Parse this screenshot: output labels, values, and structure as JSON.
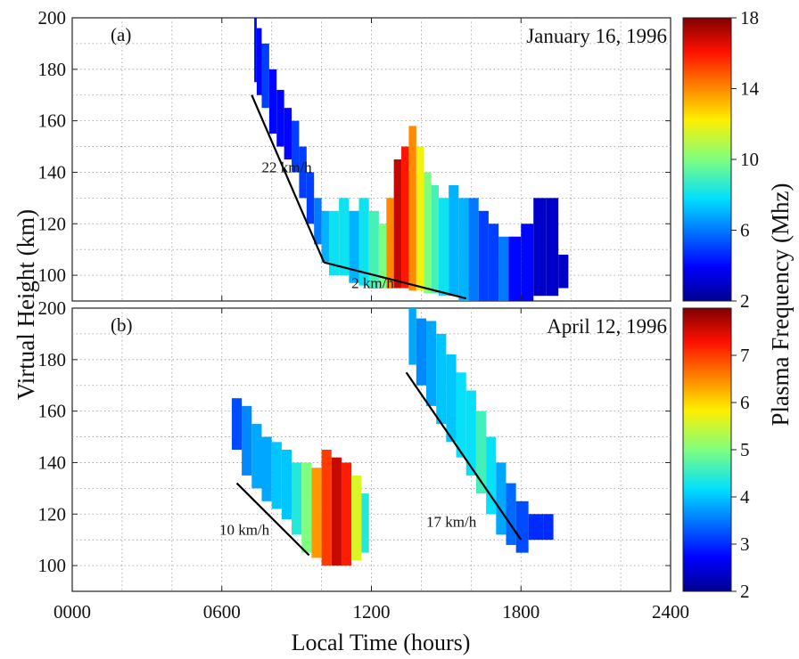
{
  "chart_data": [
    {
      "type": "heatmap",
      "panel_label": "(a)",
      "title": "January 16, 1996",
      "xlim": [
        0,
        2400
      ],
      "ylim": [
        90,
        200
      ],
      "x_ticks": [],
      "y_ticks": [
        "100",
        "120",
        "140",
        "160",
        "180",
        "200"
      ],
      "colorbar": {
        "min": 2,
        "max": 18,
        "ticks": [
          "2",
          "6",
          "10",
          "14",
          "18"
        ]
      },
      "cells": [
        {
          "t0": 730,
          "t1": 740,
          "h0": 175,
          "h1": 200,
          "f": 4
        },
        {
          "t0": 740,
          "t1": 760,
          "h0": 170,
          "h1": 196,
          "f": 4
        },
        {
          "t0": 760,
          "t1": 790,
          "h0": 165,
          "h1": 190,
          "f": 5
        },
        {
          "t0": 790,
          "t1": 820,
          "h0": 155,
          "h1": 180,
          "f": 4
        },
        {
          "t0": 820,
          "t1": 850,
          "h0": 150,
          "h1": 172,
          "f": 4
        },
        {
          "t0": 850,
          "t1": 880,
          "h0": 145,
          "h1": 165,
          "f": 4
        },
        {
          "t0": 880,
          "t1": 910,
          "h0": 140,
          "h1": 160,
          "f": 5
        },
        {
          "t0": 910,
          "t1": 940,
          "h0": 130,
          "h1": 150,
          "f": 5
        },
        {
          "t0": 940,
          "t1": 970,
          "h0": 120,
          "h1": 140,
          "f": 5
        },
        {
          "t0": 970,
          "t1": 1000,
          "h0": 112,
          "h1": 130,
          "f": 6
        },
        {
          "t0": 1000,
          "t1": 1030,
          "h0": 105,
          "h1": 125,
          "f": 7
        },
        {
          "t0": 1030,
          "t1": 1070,
          "h0": 100,
          "h1": 125,
          "f": 8
        },
        {
          "t0": 1070,
          "t1": 1110,
          "h0": 100,
          "h1": 130,
          "f": 8
        },
        {
          "t0": 1110,
          "t1": 1150,
          "h0": 97,
          "h1": 125,
          "f": 7
        },
        {
          "t0": 1150,
          "t1": 1190,
          "h0": 96,
          "h1": 130,
          "f": 8
        },
        {
          "t0": 1190,
          "t1": 1230,
          "h0": 95,
          "h1": 125,
          "f": 9
        },
        {
          "t0": 1230,
          "t1": 1260,
          "h0": 95,
          "h1": 120,
          "f": 10
        },
        {
          "t0": 1260,
          "t1": 1290,
          "h0": 95,
          "h1": 130,
          "f": 14
        },
        {
          "t0": 1290,
          "t1": 1320,
          "h0": 95,
          "h1": 145,
          "f": 17
        },
        {
          "t0": 1320,
          "t1": 1350,
          "h0": 95,
          "h1": 150,
          "f": 16
        },
        {
          "t0": 1350,
          "t1": 1380,
          "h0": 94,
          "h1": 158,
          "f": 14
        },
        {
          "t0": 1380,
          "t1": 1410,
          "h0": 94,
          "h1": 150,
          "f": 12
        },
        {
          "t0": 1410,
          "t1": 1440,
          "h0": 93,
          "h1": 140,
          "f": 10
        },
        {
          "t0": 1440,
          "t1": 1470,
          "h0": 93,
          "h1": 135,
          "f": 9
        },
        {
          "t0": 1470,
          "t1": 1510,
          "h0": 92,
          "h1": 130,
          "f": 8
        },
        {
          "t0": 1510,
          "t1": 1550,
          "h0": 92,
          "h1": 135,
          "f": 7
        },
        {
          "t0": 1550,
          "t1": 1590,
          "h0": 90,
          "h1": 130,
          "f": 7
        },
        {
          "t0": 1590,
          "t1": 1630,
          "h0": 90,
          "h1": 130,
          "f": 6
        },
        {
          "t0": 1630,
          "t1": 1670,
          "h0": 90,
          "h1": 125,
          "f": 5
        },
        {
          "t0": 1670,
          "t1": 1710,
          "h0": 90,
          "h1": 120,
          "f": 5
        },
        {
          "t0": 1710,
          "t1": 1750,
          "h0": 90,
          "h1": 115,
          "f": 6
        },
        {
          "t0": 1750,
          "t1": 1800,
          "h0": 90,
          "h1": 115,
          "f": 4
        },
        {
          "t0": 1800,
          "t1": 1850,
          "h0": 90,
          "h1": 120,
          "f": 4
        },
        {
          "t0": 1850,
          "t1": 1900,
          "h0": 92,
          "h1": 130,
          "f": 3
        },
        {
          "t0": 1900,
          "t1": 1950,
          "h0": 92,
          "h1": 130,
          "f": 3
        },
        {
          "t0": 1950,
          "t1": 1990,
          "h0": 95,
          "h1": 108,
          "f": 3
        }
      ],
      "fits": [
        {
          "label": "22 km/h",
          "x": [
            720,
            1010
          ],
          "y": [
            170,
            105
          ],
          "label_at": [
            760,
            140
          ]
        },
        {
          "label": "2 km/h",
          "x": [
            1010,
            1580
          ],
          "y": [
            105,
            91
          ],
          "label_at": [
            1120,
            95
          ]
        }
      ]
    },
    {
      "type": "heatmap",
      "panel_label": "(b)",
      "title": "April 12, 1996",
      "xlim": [
        0,
        2400
      ],
      "ylim": [
        90,
        200
      ],
      "x_ticks": [
        "0000",
        "0600",
        "1200",
        "1800",
        "2400"
      ],
      "y_ticks": [
        "100",
        "120",
        "140",
        "160",
        "180",
        "200"
      ],
      "colorbar": {
        "min": 2,
        "max": 8,
        "ticks": [
          "2",
          "3",
          "4",
          "5",
          "6",
          "7"
        ]
      },
      "cells": [
        {
          "t0": 640,
          "t1": 680,
          "h0": 145,
          "h1": 165,
          "f": 3.2
        },
        {
          "t0": 680,
          "t1": 720,
          "h0": 135,
          "h1": 162,
          "f": 3.6
        },
        {
          "t0": 720,
          "t1": 760,
          "h0": 130,
          "h1": 155,
          "f": 3.8
        },
        {
          "t0": 760,
          "t1": 800,
          "h0": 125,
          "h1": 150,
          "f": 3.8
        },
        {
          "t0": 800,
          "t1": 840,
          "h0": 122,
          "h1": 148,
          "f": 4.0
        },
        {
          "t0": 840,
          "t1": 880,
          "h0": 118,
          "h1": 145,
          "f": 4.0
        },
        {
          "t0": 880,
          "t1": 920,
          "h0": 112,
          "h1": 140,
          "f": 4.4
        },
        {
          "t0": 920,
          "t1": 960,
          "h0": 105,
          "h1": 140,
          "f": 5.0
        },
        {
          "t0": 960,
          "t1": 1000,
          "h0": 103,
          "h1": 138,
          "f": 6.4
        },
        {
          "t0": 1000,
          "t1": 1040,
          "h0": 100,
          "h1": 145,
          "f": 7.0
        },
        {
          "t0": 1040,
          "t1": 1080,
          "h0": 100,
          "h1": 142,
          "f": 7.6
        },
        {
          "t0": 1080,
          "t1": 1120,
          "h0": 100,
          "h1": 140,
          "f": 7.2
        },
        {
          "t0": 1120,
          "t1": 1160,
          "h0": 102,
          "h1": 135,
          "f": 5.6
        },
        {
          "t0": 1160,
          "t1": 1190,
          "h0": 105,
          "h1": 128,
          "f": 4.4
        },
        {
          "t0": 1350,
          "t1": 1380,
          "h0": 178,
          "h1": 200,
          "f": 3.8
        },
        {
          "t0": 1380,
          "t1": 1420,
          "h0": 170,
          "h1": 196,
          "f": 3.6
        },
        {
          "t0": 1420,
          "t1": 1460,
          "h0": 162,
          "h1": 195,
          "f": 3.8
        },
        {
          "t0": 1460,
          "t1": 1500,
          "h0": 155,
          "h1": 190,
          "f": 4.0
        },
        {
          "t0": 1500,
          "t1": 1540,
          "h0": 148,
          "h1": 182,
          "f": 4.0
        },
        {
          "t0": 1540,
          "t1": 1580,
          "h0": 142,
          "h1": 175,
          "f": 4.2
        },
        {
          "t0": 1580,
          "t1": 1620,
          "h0": 135,
          "h1": 168,
          "f": 4.2
        },
        {
          "t0": 1620,
          "t1": 1660,
          "h0": 128,
          "h1": 160,
          "f": 4.6
        },
        {
          "t0": 1660,
          "t1": 1700,
          "h0": 120,
          "h1": 150,
          "f": 4.2
        },
        {
          "t0": 1700,
          "t1": 1740,
          "h0": 112,
          "h1": 140,
          "f": 3.8
        },
        {
          "t0": 1740,
          "t1": 1780,
          "h0": 108,
          "h1": 132,
          "f": 3.4
        },
        {
          "t0": 1780,
          "t1": 1830,
          "h0": 105,
          "h1": 125,
          "f": 3.2
        },
        {
          "t0": 1830,
          "t1": 1890,
          "h0": 110,
          "h1": 120,
          "f": 3.0
        },
        {
          "t0": 1890,
          "t1": 1930,
          "h0": 110,
          "h1": 120,
          "f": 3.0
        }
      ],
      "fits": [
        {
          "label": "10 km/h",
          "x": [
            660,
            950
          ],
          "y": [
            132,
            104
          ],
          "label_at": [
            590,
            112
          ]
        },
        {
          "label": "17 km/h",
          "x": [
            1340,
            1800
          ],
          "y": [
            175,
            110
          ],
          "label_at": [
            1420,
            115
          ]
        }
      ]
    }
  ],
  "axes_text": {
    "ylabel": "Virtual Height (km)",
    "xlabel": "Local Time (hours)",
    "cbar_label": "Plasma Frequency (Mhz)"
  }
}
